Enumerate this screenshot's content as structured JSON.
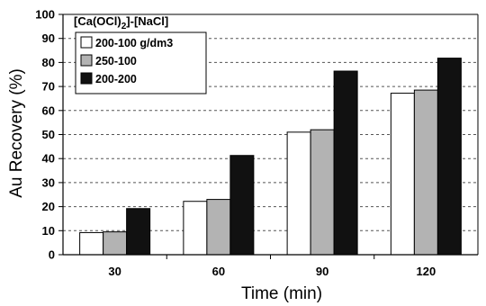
{
  "chart_data": {
    "type": "bar",
    "categories": [
      "30",
      "60",
      "90",
      "120"
    ],
    "series": [
      {
        "name": "200-100 g/dm3",
        "values": [
          9.2,
          22.2,
          51.0,
          67.2
        ],
        "color": "#ffffff"
      },
      {
        "name": "250-100",
        "values": [
          9.5,
          23.0,
          52.0,
          68.5
        ],
        "color": "#b3b3b3"
      },
      {
        "name": "200-200",
        "values": [
          19.2,
          41.3,
          76.4,
          81.8
        ],
        "color": "#111111"
      }
    ],
    "xlabel": "Time (min)",
    "ylabel": "Au Recovery (%)",
    "ylim": [
      0,
      100
    ],
    "yticks": [
      0,
      10,
      20,
      30,
      40,
      50,
      60,
      70,
      80,
      90,
      100
    ],
    "grid": "horizontal dashed",
    "legend": {
      "title_main": "[Ca(OCl)",
      "title_sub": "2",
      "title_tail": "]-[NaCl]",
      "placement": "top-left"
    }
  }
}
